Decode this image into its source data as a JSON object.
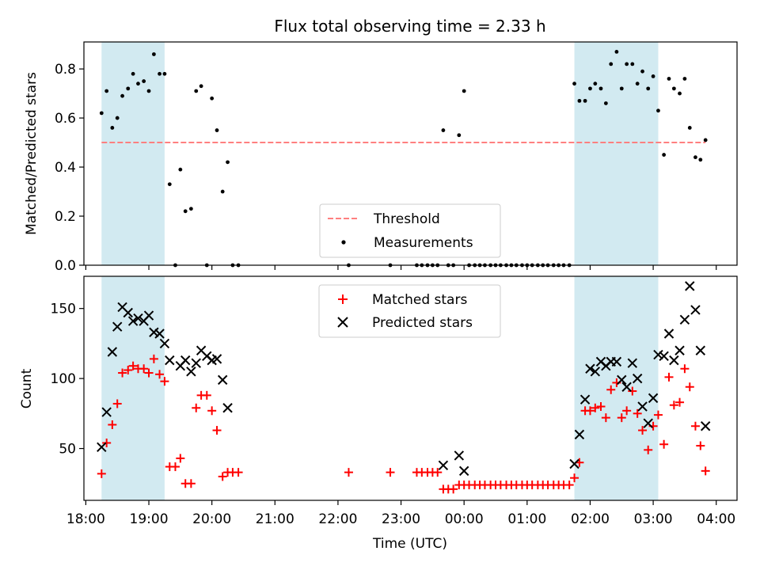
{
  "title": "Flux total observing time = 2.33 h",
  "chart_data": [
    {
      "type": "scatter",
      "panel": "top",
      "ylabel": "Matched/Predicted stars",
      "xlabel": "",
      "x_unit": "hours since 18:00 UTC",
      "xlim": [
        17.97,
        28.33
      ],
      "ylim": [
        0.0,
        0.91
      ],
      "yticks": [
        0.0,
        0.2,
        0.4,
        0.6,
        0.8
      ],
      "ytick_labels": [
        "0.0",
        "0.2",
        "0.4",
        "0.6",
        "0.8"
      ],
      "threshold": {
        "name": "Threshold",
        "value": 0.5,
        "color": "#ff7f7f",
        "style": "dashed"
      },
      "series": [
        {
          "name": "Measurements",
          "color": "#000000",
          "marker": "dot",
          "points": [
            [
              18.25,
              0.62
            ],
            [
              18.33,
              0.71
            ],
            [
              18.42,
              0.56
            ],
            [
              18.5,
              0.6
            ],
            [
              18.58,
              0.69
            ],
            [
              18.67,
              0.72
            ],
            [
              18.75,
              0.78
            ],
            [
              18.83,
              0.74
            ],
            [
              18.92,
              0.75
            ],
            [
              19.0,
              0.71
            ],
            [
              19.08,
              0.86
            ],
            [
              19.17,
              0.78
            ],
            [
              19.25,
              0.78
            ],
            [
              19.33,
              0.33
            ],
            [
              19.42,
              0.0
            ],
            [
              19.5,
              0.39
            ],
            [
              19.58,
              0.22
            ],
            [
              19.67,
              0.23
            ],
            [
              19.75,
              0.71
            ],
            [
              19.83,
              0.73
            ],
            [
              19.92,
              0.0
            ],
            [
              20.0,
              0.68
            ],
            [
              20.08,
              0.55
            ],
            [
              20.17,
              0.3
            ],
            [
              20.25,
              0.42
            ],
            [
              20.33,
              0.0
            ],
            [
              20.42,
              0.0
            ],
            [
              22.17,
              0.0
            ],
            [
              22.83,
              0.0
            ],
            [
              23.25,
              0.0
            ],
            [
              23.33,
              0.0
            ],
            [
              23.42,
              0.0
            ],
            [
              23.5,
              0.0
            ],
            [
              23.58,
              0.0
            ],
            [
              23.67,
              0.55
            ],
            [
              23.75,
              0.0
            ],
            [
              23.83,
              0.0
            ],
            [
              23.92,
              0.53
            ],
            [
              24.0,
              0.71
            ],
            [
              24.08,
              0.0
            ],
            [
              24.17,
              0.0
            ],
            [
              24.25,
              0.0
            ],
            [
              24.33,
              0.0
            ],
            [
              24.42,
              0.0
            ],
            [
              24.5,
              0.0
            ],
            [
              24.58,
              0.0
            ],
            [
              24.67,
              0.0
            ],
            [
              24.75,
              0.0
            ],
            [
              24.83,
              0.0
            ],
            [
              24.92,
              0.0
            ],
            [
              25.0,
              0.0
            ],
            [
              25.08,
              0.0
            ],
            [
              25.17,
              0.0
            ],
            [
              25.25,
              0.0
            ],
            [
              25.33,
              0.0
            ],
            [
              25.42,
              0.0
            ],
            [
              25.5,
              0.0
            ],
            [
              25.58,
              0.0
            ],
            [
              25.67,
              0.0
            ],
            [
              25.75,
              0.74
            ],
            [
              25.83,
              0.67
            ],
            [
              25.92,
              0.67
            ],
            [
              26.0,
              0.72
            ],
            [
              26.08,
              0.74
            ],
            [
              26.17,
              0.72
            ],
            [
              26.25,
              0.66
            ],
            [
              26.33,
              0.82
            ],
            [
              26.42,
              0.87
            ],
            [
              26.5,
              0.72
            ],
            [
              26.58,
              0.82
            ],
            [
              26.67,
              0.82
            ],
            [
              26.75,
              0.74
            ],
            [
              26.83,
              0.79
            ],
            [
              26.92,
              0.72
            ],
            [
              27.0,
              0.77
            ],
            [
              27.08,
              0.63
            ],
            [
              27.17,
              0.45
            ],
            [
              27.25,
              0.76
            ],
            [
              27.33,
              0.72
            ],
            [
              27.42,
              0.7
            ],
            [
              27.5,
              0.76
            ],
            [
              27.58,
              0.56
            ],
            [
              27.67,
              0.44
            ],
            [
              27.75,
              0.43
            ],
            [
              27.83,
              0.51
            ]
          ]
        }
      ],
      "legend": {
        "placement": "lower center",
        "entries": [
          "Threshold",
          "Measurements"
        ]
      }
    },
    {
      "type": "scatter",
      "panel": "bottom",
      "ylabel": "Count",
      "xlabel": "Time (UTC)",
      "x_unit": "hours since 18:00 UTC",
      "xlim": [
        17.97,
        28.33
      ],
      "ylim": [
        13,
        173
      ],
      "yticks": [
        50,
        100,
        150
      ],
      "ytick_labels": [
        "50",
        "100",
        "150"
      ],
      "xticks": [
        18,
        19,
        20,
        21,
        22,
        23,
        24,
        25,
        26,
        27,
        28
      ],
      "xtick_labels": [
        "18:00",
        "19:00",
        "20:00",
        "21:00",
        "22:00",
        "23:00",
        "00:00",
        "01:00",
        "02:00",
        "03:00",
        "04:00"
      ],
      "series": [
        {
          "name": "Matched stars",
          "color": "#ff0000",
          "marker": "+",
          "points": [
            [
              18.25,
              32
            ],
            [
              18.33,
              54
            ],
            [
              18.42,
              67
            ],
            [
              18.5,
              82
            ],
            [
              18.58,
              104
            ],
            [
              18.67,
              106
            ],
            [
              18.75,
              109
            ],
            [
              18.83,
              107
            ],
            [
              18.92,
              107
            ],
            [
              19.0,
              104
            ],
            [
              19.08,
              114
            ],
            [
              19.17,
              103
            ],
            [
              19.25,
              98
            ],
            [
              19.33,
              37
            ],
            [
              19.42,
              37
            ],
            [
              19.5,
              43
            ],
            [
              19.58,
              25
            ],
            [
              19.67,
              25
            ],
            [
              19.75,
              79
            ],
            [
              19.83,
              88
            ],
            [
              19.92,
              88
            ],
            [
              20.0,
              77
            ],
            [
              20.08,
              63
            ],
            [
              20.17,
              30
            ],
            [
              20.25,
              33
            ],
            [
              20.33,
              33
            ],
            [
              20.42,
              33
            ],
            [
              22.17,
              33
            ],
            [
              22.83,
              33
            ],
            [
              23.25,
              33
            ],
            [
              23.33,
              33
            ],
            [
              23.42,
              33
            ],
            [
              23.5,
              33
            ],
            [
              23.58,
              33
            ],
            [
              23.67,
              21
            ],
            [
              23.75,
              21
            ],
            [
              23.83,
              21
            ],
            [
              23.92,
              24
            ],
            [
              24.0,
              24
            ],
            [
              24.08,
              24
            ],
            [
              24.17,
              24
            ],
            [
              24.25,
              24
            ],
            [
              24.33,
              24
            ],
            [
              24.42,
              24
            ],
            [
              24.5,
              24
            ],
            [
              24.58,
              24
            ],
            [
              24.67,
              24
            ],
            [
              24.75,
              24
            ],
            [
              24.83,
              24
            ],
            [
              24.92,
              24
            ],
            [
              25.0,
              24
            ],
            [
              25.08,
              24
            ],
            [
              25.17,
              24
            ],
            [
              25.25,
              24
            ],
            [
              25.33,
              24
            ],
            [
              25.42,
              24
            ],
            [
              25.5,
              24
            ],
            [
              25.58,
              24
            ],
            [
              25.67,
              24
            ],
            [
              25.75,
              29
            ],
            [
              25.83,
              40
            ],
            [
              25.92,
              77
            ],
            [
              26.0,
              77
            ],
            [
              26.08,
              79
            ],
            [
              26.17,
              80
            ],
            [
              26.25,
              72
            ],
            [
              26.33,
              92
            ],
            [
              26.42,
              97
            ],
            [
              26.5,
              72
            ],
            [
              26.58,
              77
            ],
            [
              26.67,
              91
            ],
            [
              26.75,
              75
            ],
            [
              26.83,
              63
            ],
            [
              26.92,
              49
            ],
            [
              27.0,
              66
            ],
            [
              27.08,
              74
            ],
            [
              27.17,
              53
            ],
            [
              27.25,
              101
            ],
            [
              27.33,
              81
            ],
            [
              27.42,
              83
            ],
            [
              27.5,
              107
            ],
            [
              27.58,
              94
            ],
            [
              27.67,
              66
            ],
            [
              27.75,
              52
            ],
            [
              27.83,
              34
            ]
          ]
        },
        {
          "name": "Predicted stars",
          "color": "#000000",
          "marker": "x",
          "points": [
            [
              18.25,
              51
            ],
            [
              18.33,
              76
            ],
            [
              18.42,
              119
            ],
            [
              18.5,
              137
            ],
            [
              18.58,
              151
            ],
            [
              18.67,
              147
            ],
            [
              18.75,
              141
            ],
            [
              18.83,
              143
            ],
            [
              18.92,
              141
            ],
            [
              19.0,
              145
            ],
            [
              19.08,
              133
            ],
            [
              19.17,
              132
            ],
            [
              19.25,
              125
            ],
            [
              19.33,
              113
            ],
            [
              19.5,
              109
            ],
            [
              19.58,
              113
            ],
            [
              19.67,
              105
            ],
            [
              19.75,
              111
            ],
            [
              19.83,
              120
            ],
            [
              19.92,
              116
            ],
            [
              20.0,
              113
            ],
            [
              20.08,
              114
            ],
            [
              20.17,
              99
            ],
            [
              20.25,
              79
            ],
            [
              23.67,
              38
            ],
            [
              23.92,
              45
            ],
            [
              24.0,
              34
            ],
            [
              25.75,
              39
            ],
            [
              25.83,
              60
            ],
            [
              25.92,
              85
            ],
            [
              26.0,
              107
            ],
            [
              26.08,
              105
            ],
            [
              26.17,
              112
            ],
            [
              26.25,
              109
            ],
            [
              26.33,
              112
            ],
            [
              26.42,
              112
            ],
            [
              26.5,
              99
            ],
            [
              26.58,
              94
            ],
            [
              26.67,
              111
            ],
            [
              26.75,
              100
            ],
            [
              26.83,
              80
            ],
            [
              26.92,
              68
            ],
            [
              27.0,
              86
            ],
            [
              27.08,
              117
            ],
            [
              27.17,
              116
            ],
            [
              27.25,
              132
            ],
            [
              27.33,
              113
            ],
            [
              27.42,
              120
            ],
            [
              27.5,
              142
            ],
            [
              27.58,
              166
            ],
            [
              27.67,
              149
            ],
            [
              27.75,
              120
            ],
            [
              27.83,
              66
            ]
          ]
        }
      ],
      "legend": {
        "placement": "upper center",
        "entries": [
          "Matched stars",
          "Predicted stars"
        ]
      }
    }
  ],
  "shaded_regions": [
    {
      "start": 18.25,
      "end": 19.25,
      "color": "#add8e6"
    },
    {
      "start": 25.75,
      "end": 27.08,
      "color": "#add8e6"
    }
  ]
}
